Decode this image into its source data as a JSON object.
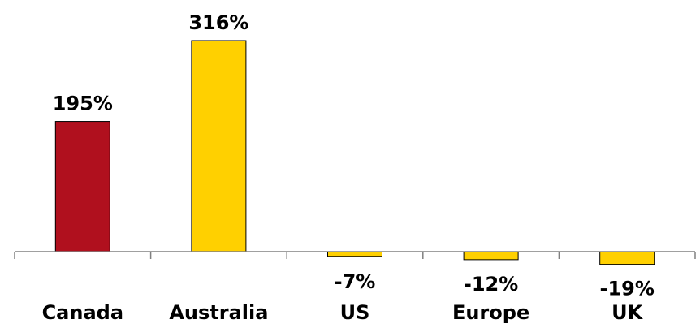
{
  "chart_data": {
    "type": "bar",
    "title": "",
    "xlabel": "",
    "ylabel": "",
    "categories": [
      "Canada",
      "Australia",
      "US",
      "Europe",
      "UK"
    ],
    "values": [
      195,
      316,
      -7,
      -12,
      -19
    ],
    "value_labels": [
      "195%",
      "316%",
      "-7%",
      "-12%",
      "-19%"
    ],
    "unit": "%",
    "bar_colors": [
      "#B0101E",
      "#FFD000",
      "#FFD000",
      "#FFD000",
      "#FFD000"
    ],
    "bar_outline_color": "#000000",
    "axis_color": "#808080",
    "ylim": [
      -19,
      316
    ],
    "grid": false,
    "legend": "none"
  }
}
